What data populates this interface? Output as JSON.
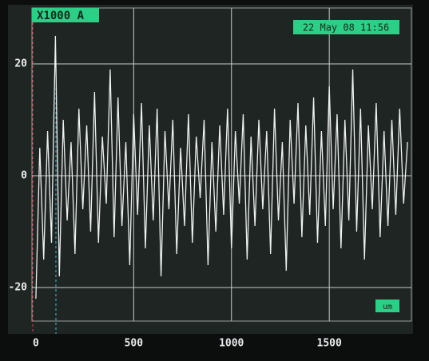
{
  "chart_data": {
    "type": "line",
    "channel_label": "X1000 A",
    "timestamp": "22 May 08 11:56",
    "unit_label": "um",
    "x": [
      0,
      20,
      40,
      60,
      80,
      100,
      120,
      140,
      160,
      180,
      200,
      220,
      240,
      260,
      280,
      300,
      320,
      340,
      360,
      380,
      400,
      420,
      440,
      460,
      480,
      500,
      520,
      540,
      560,
      580,
      600,
      620,
      640,
      660,
      680,
      700,
      720,
      740,
      760,
      780,
      800,
      820,
      840,
      860,
      880,
      900,
      920,
      940,
      960,
      980,
      1000,
      1020,
      1040,
      1060,
      1080,
      1100,
      1120,
      1140,
      1160,
      1180,
      1200,
      1220,
      1240,
      1260,
      1280,
      1300,
      1320,
      1340,
      1360,
      1380,
      1400,
      1420,
      1440,
      1460,
      1480,
      1500,
      1520,
      1540,
      1560,
      1580,
      1600,
      1620,
      1640,
      1660,
      1680,
      1700,
      1720,
      1740,
      1760,
      1780,
      1800,
      1820,
      1840,
      1860,
      1880,
      1900
    ],
    "series": [
      {
        "color": "#eef1f1",
        "values": [
          -22,
          5,
          -15,
          8,
          -12,
          25,
          -18,
          10,
          -8,
          6,
          -14,
          12,
          -6,
          9,
          -10,
          15,
          -12,
          7,
          -5,
          19,
          -11,
          14,
          -9,
          6,
          -16,
          11,
          -7,
          13,
          -13,
          9,
          -8,
          12,
          -18,
          8,
          -6,
          10,
          -14,
          5,
          -9,
          11,
          -12,
          7,
          -4,
          10,
          -16,
          6,
          -10,
          9,
          -7,
          12,
          -13,
          8,
          -5,
          11,
          -15,
          7,
          -9,
          10,
          -6,
          8,
          -14,
          12,
          -8,
          6,
          -17,
          10,
          -5,
          13,
          -11,
          9,
          -7,
          14,
          -12,
          8,
          -9,
          16,
          -6,
          11,
          -13,
          10,
          -8,
          19,
          -10,
          12,
          -15,
          9,
          -6,
          13,
          -11,
          8,
          -9,
          10,
          -7,
          12,
          -5,
          6
        ]
      }
    ],
    "xlim": [
      -20,
      1920
    ],
    "ylim": [
      -26,
      30
    ],
    "xticks": [
      0,
      500,
      1000,
      1500
    ],
    "yticks": [
      -20,
      0,
      20
    ],
    "grid": true
  }
}
